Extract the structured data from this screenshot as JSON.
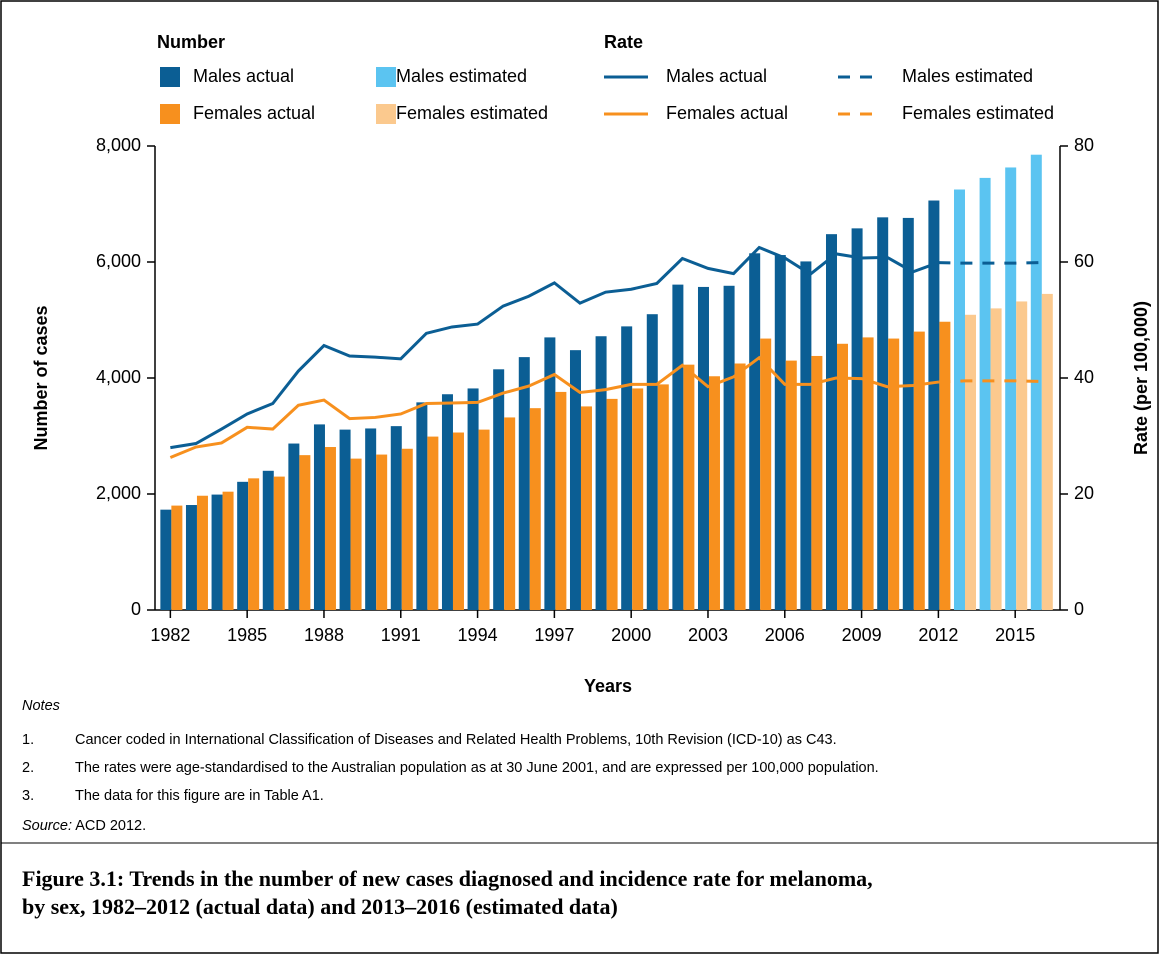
{
  "chart_data": {
    "type": "bar",
    "legend_headings": [
      "Number",
      "Rate"
    ],
    "x": [
      1982,
      1983,
      1984,
      1985,
      1986,
      1987,
      1988,
      1989,
      1990,
      1991,
      1992,
      1993,
      1994,
      1995,
      1996,
      1997,
      1998,
      1999,
      2000,
      2001,
      2002,
      2003,
      2004,
      2005,
      2006,
      2007,
      2008,
      2009,
      2010,
      2011,
      2012,
      2013,
      2014,
      2015,
      2016
    ],
    "xlim": [
      1981.4,
      2016.75
    ],
    "xticks": [
      1982,
      1985,
      1988,
      1991,
      1994,
      1997,
      2000,
      2003,
      2006,
      2009,
      2012,
      2015
    ],
    "xlabel": "Years",
    "ylabel": "Number of cases",
    "ylim": [
      0,
      8000
    ],
    "yticks": [
      0,
      {
        "value": 2000,
        "label": "2,000"
      },
      {
        "value": 4000,
        "label": "4,000"
      },
      {
        "value": 6000,
        "label": "6,000"
      },
      {
        "value": 8000,
        "label": "8,000"
      }
    ],
    "y2label": "Rate (per 100,000)",
    "y2lim": [
      0,
      80
    ],
    "y2ticks": [
      0,
      20,
      40,
      60,
      80
    ],
    "series": [
      {
        "name": "Males actual",
        "type": "bar",
        "color": "#0b5e94",
        "values": [
          1730,
          1810,
          1990,
          2210,
          2400,
          2870,
          3200,
          3110,
          3130,
          3170,
          3580,
          3720,
          3820,
          4150,
          4360,
          4700,
          4480,
          4720,
          4890,
          5100,
          5610,
          5570,
          5590,
          6150,
          6120,
          6010,
          6480,
          6580,
          6770,
          6760,
          7060,
          null,
          null,
          null,
          null
        ]
      },
      {
        "name": "Females actual",
        "type": "bar",
        "color": "#f7901e",
        "values": [
          1800,
          1970,
          2040,
          2270,
          2300,
          2670,
          2810,
          2610,
          2680,
          2780,
          2990,
          3060,
          3110,
          3320,
          3480,
          3760,
          3510,
          3640,
          3820,
          3890,
          4230,
          4030,
          4250,
          4680,
          4300,
          4380,
          4590,
          4700,
          4680,
          4800,
          4970,
          null,
          null,
          null,
          null
        ]
      },
      {
        "name": "Males estimated",
        "type": "bar",
        "color": "#5bc4f1",
        "values": [
          null,
          null,
          null,
          null,
          null,
          null,
          null,
          null,
          null,
          null,
          null,
          null,
          null,
          null,
          null,
          null,
          null,
          null,
          null,
          null,
          null,
          null,
          null,
          null,
          null,
          null,
          null,
          null,
          null,
          null,
          null,
          7250,
          7450,
          7630,
          7850
        ]
      },
      {
        "name": "Females estimated",
        "type": "bar",
        "color": "#fbc98e",
        "values": [
          null,
          null,
          null,
          null,
          null,
          null,
          null,
          null,
          null,
          null,
          null,
          null,
          null,
          null,
          null,
          null,
          null,
          null,
          null,
          null,
          null,
          null,
          null,
          null,
          null,
          null,
          null,
          null,
          null,
          null,
          null,
          5090,
          5200,
          5320,
          5450
        ]
      },
      {
        "name": "Males actual",
        "type": "line",
        "axis": "y2",
        "color": "#0b5e94",
        "values": [
          28,
          28.7,
          31.2,
          33.8,
          35.6,
          41.2,
          45.6,
          43.8,
          43.6,
          43.3,
          47.7,
          48.8,
          49.3,
          52.4,
          54.1,
          56.4,
          52.9,
          54.8,
          55.3,
          56.3,
          60.6,
          58.9,
          58,
          62.5,
          60.7,
          57.9,
          61.4,
          60.7,
          60.8,
          58.3,
          59.9,
          null,
          null,
          null,
          null
        ]
      },
      {
        "name": "Females actual",
        "type": "line",
        "axis": "y2",
        "color": "#f7901e",
        "values": [
          26.3,
          28.1,
          28.8,
          31.5,
          31.2,
          35.3,
          36.2,
          33,
          33.2,
          33.8,
          35.6,
          35.7,
          35.8,
          37.4,
          38.6,
          40.6,
          37.5,
          38,
          38.9,
          38.9,
          42.2,
          38.5,
          40.2,
          43.5,
          38.9,
          38.9,
          40,
          39.9,
          38.5,
          38.7,
          39.3,
          null,
          null,
          null,
          null
        ]
      },
      {
        "name": "Males estimated",
        "type": "line",
        "axis": "y2",
        "dash": true,
        "color": "#0b5e94",
        "values": [
          null,
          null,
          null,
          null,
          null,
          null,
          null,
          null,
          null,
          null,
          null,
          null,
          null,
          null,
          null,
          null,
          null,
          null,
          null,
          null,
          null,
          null,
          null,
          null,
          null,
          null,
          null,
          null,
          null,
          null,
          59.9,
          59.8,
          59.8,
          59.8,
          59.9
        ]
      },
      {
        "name": "Females estimated",
        "type": "line",
        "axis": "y2",
        "dash": true,
        "color": "#f7901e",
        "values": [
          null,
          null,
          null,
          null,
          null,
          null,
          null,
          null,
          null,
          null,
          null,
          null,
          null,
          null,
          null,
          null,
          null,
          null,
          null,
          null,
          null,
          null,
          null,
          null,
          null,
          null,
          null,
          null,
          null,
          null,
          39.3,
          39.5,
          39.5,
          39.5,
          39.4
        ]
      }
    ]
  },
  "notes": {
    "heading": "Notes",
    "items": [
      {
        "number": "1.",
        "text": "Cancer coded in International Classification of Diseases and Related Health Problems, 10th Revision (ICD-10) as C43."
      },
      {
        "number": "2.",
        "text": "The rates were age-standardised to the Australian population as at 30 June 2001, and are expressed per 100,000 population."
      },
      {
        "number": "3.",
        "text": "The data for this figure are in Table A1."
      }
    ],
    "source_label": "Source:",
    "source": "ACD 2012."
  },
  "caption": [
    "Figure 3.1: Trends in the number of new cases diagnosed and incidence rate for melanoma,",
    "by sex, 1982–2012 (actual data) and 2013–2016 (estimated data)"
  ]
}
